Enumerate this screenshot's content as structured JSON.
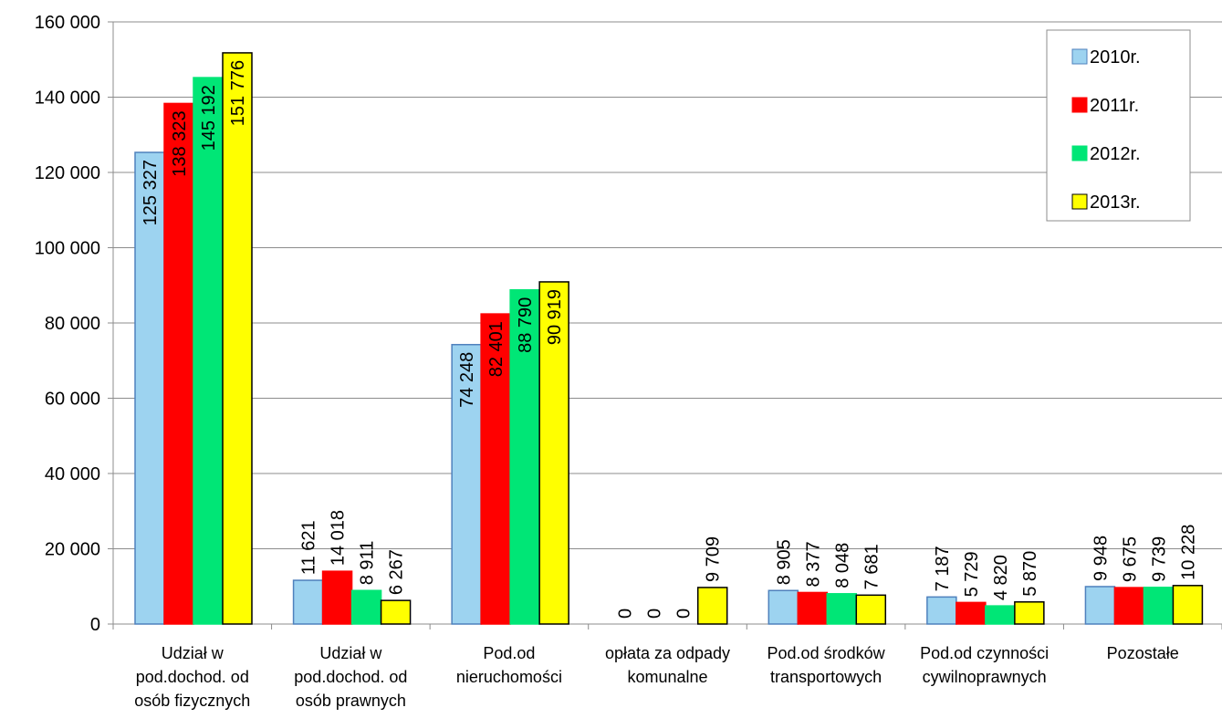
{
  "chart_data": {
    "type": "bar",
    "categories": [
      [
        "Udział w",
        "pod.dochod. od",
        "osób fizycznych"
      ],
      [
        "Udział w",
        "pod.dochod. od",
        "osób prawnych"
      ],
      [
        "Pod.od",
        "nieruchomości"
      ],
      [
        "opłata za odpady",
        "komunalne"
      ],
      [
        "Pod.od środków",
        "transportowych"
      ],
      [
        "Pod.od czynności",
        "cywilnoprawnych"
      ],
      [
        "Pozostałe"
      ]
    ],
    "series": [
      {
        "name": "2010r.",
        "color": "#9DD3F0",
        "stroke": "#4F81BD",
        "values": [
          125327,
          11621,
          74248,
          0,
          8905,
          7187,
          9948
        ],
        "labels": [
          "125 327",
          "11 621",
          "74 248",
          "0",
          "8 905",
          "7 187",
          "9 948"
        ]
      },
      {
        "name": "2011r.",
        "color": "#FF0000",
        "stroke": "#FF0000",
        "values": [
          138323,
          14018,
          82401,
          0,
          8377,
          5729,
          9675
        ],
        "labels": [
          "138 323",
          "14 018",
          "82 401",
          "0",
          "8 377",
          "5 729",
          "9 675"
        ]
      },
      {
        "name": "2012r.",
        "color": "#00E676",
        "stroke": "#00E676",
        "values": [
          145192,
          8911,
          88790,
          0,
          8048,
          4820,
          9739
        ],
        "labels": [
          "145 192",
          "8 911",
          "88 790",
          "0",
          "8 048",
          "4 820",
          "9 739"
        ]
      },
      {
        "name": "2013r.",
        "color": "#FFFF00",
        "stroke": "#000000",
        "values": [
          151776,
          6267,
          90919,
          9709,
          7681,
          5870,
          10228
        ],
        "labels": [
          "151 776",
          "6 267",
          "90 919",
          "9 709",
          "7 681",
          "5 870",
          "10 228"
        ]
      }
    ],
    "ylim": [
      0,
      160000
    ],
    "yticks": [
      0,
      20000,
      40000,
      60000,
      80000,
      100000,
      120000,
      140000,
      160000
    ],
    "ytick_labels": [
      "0",
      "20 000",
      "40 000",
      "60 000",
      "80 000",
      "100 000",
      "120 000",
      "140 000",
      "160 000"
    ],
    "grid": true,
    "legend_position": "top-right"
  }
}
